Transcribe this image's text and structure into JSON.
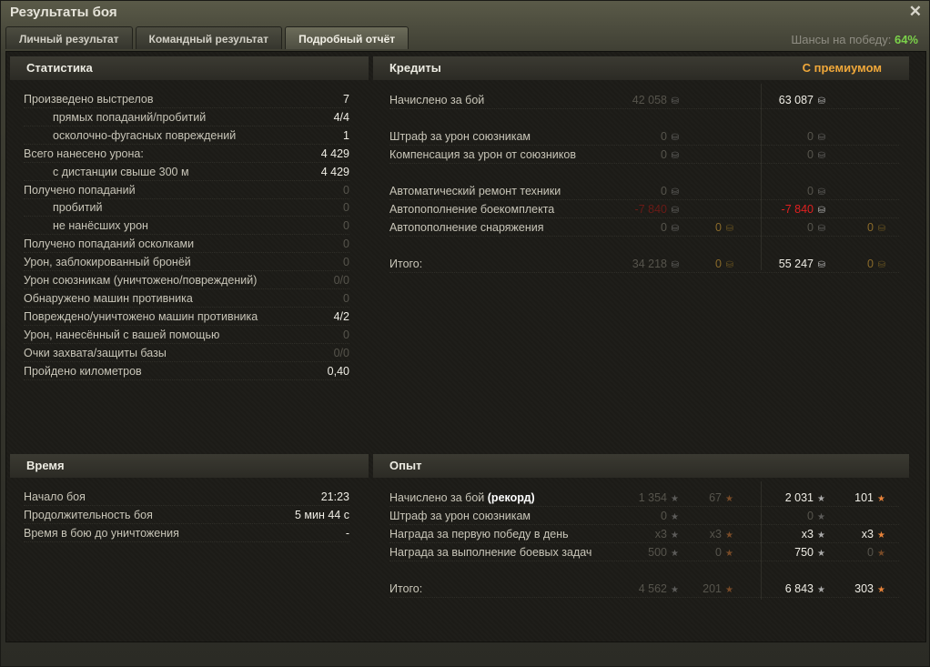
{
  "window": {
    "title": "Результаты боя",
    "close_icon": "close-icon"
  },
  "tabs": [
    {
      "label": "Личный результат",
      "active": false
    },
    {
      "label": "Командный результат",
      "active": false
    },
    {
      "label": "Подробный отчёт",
      "active": true
    }
  ],
  "win_chance": {
    "label": "Шансы на победу:",
    "value": "64%",
    "color": "#7bd24a"
  },
  "colors": {
    "premium": "#f0a83a",
    "negative": "#e02020"
  },
  "statistics": {
    "title": "Статистика",
    "rows": [
      {
        "label": "Произведено выстрелов",
        "value": "7",
        "indent": false,
        "dim": false
      },
      {
        "label": "прямых попаданий/пробитий",
        "value": "4/4",
        "indent": true,
        "dim": false
      },
      {
        "label": "осколочно-фугасных повреждений",
        "value": "1",
        "indent": true,
        "dim": false
      },
      {
        "label": "Всего нанесено урона:",
        "value": "4 429",
        "indent": false,
        "dim": false
      },
      {
        "label": "с дистанции свыше 300 м",
        "value": "4 429",
        "indent": true,
        "dim": false
      },
      {
        "label": "Получено попаданий",
        "value": "0",
        "indent": false,
        "dim": true
      },
      {
        "label": "пробитий",
        "value": "0",
        "indent": true,
        "dim": true
      },
      {
        "label": "не нанёсших урон",
        "value": "0",
        "indent": true,
        "dim": true
      },
      {
        "label": "Получено попаданий осколками",
        "value": "0",
        "indent": false,
        "dim": true
      },
      {
        "label": "Урон, заблокированный бронёй",
        "value": "0",
        "indent": false,
        "dim": true
      },
      {
        "label": "Урон союзникам (уничтожено/повреждений)",
        "value": "0/0",
        "indent": false,
        "dim": true
      },
      {
        "label": "Обнаружено машин противника",
        "value": "0",
        "indent": false,
        "dim": true
      },
      {
        "label": "Повреждено/уничтожено машин противника",
        "value": "4/2",
        "indent": false,
        "dim": false
      },
      {
        "label": "Урон, нанесённый с вашей помощью",
        "value": "0",
        "indent": false,
        "dim": true
      },
      {
        "label": "Очки захвата/защиты базы",
        "value": "0/0",
        "indent": false,
        "dim": true
      },
      {
        "label": "Пройдено километров",
        "value": "0,40",
        "indent": false,
        "dim": false
      }
    ]
  },
  "time": {
    "title": "Время",
    "rows": [
      {
        "label": "Начало боя",
        "value": "21:23"
      },
      {
        "label": "Продолжительность боя",
        "value": "5 мин 44 с"
      },
      {
        "label": "Время в бою до уничтожения",
        "value": "-"
      }
    ]
  },
  "credits": {
    "title": "Кредиты",
    "premium_label": "С премиумом",
    "groups": [
      [
        {
          "label": "Начислено за бой",
          "cells": [
            "42 058",
            null,
            "63 087",
            null
          ]
        }
      ],
      [
        {
          "label": "Штраф за урон союзникам",
          "cells": [
            "0",
            null,
            "0",
            null
          ]
        },
        {
          "label": "Компенсация за урон от союзников",
          "cells": [
            "0",
            null,
            "0",
            null
          ]
        }
      ],
      [
        {
          "label": "Автоматический ремонт техники",
          "cells": [
            "0",
            null,
            "0",
            null
          ]
        },
        {
          "label": "Автопополнение боекомплекта",
          "cells": [
            "-7 840",
            null,
            "-7 840",
            null
          ]
        },
        {
          "label": "Автопополнение снаряжения",
          "cells": [
            "0",
            "0",
            "0",
            "0"
          ]
        }
      ],
      [
        {
          "label": "Итого:",
          "cells": [
            "34 218",
            "0",
            "55 247",
            "0"
          ]
        }
      ]
    ]
  },
  "experience": {
    "title": "Опыт",
    "groups": [
      [
        {
          "label": "Начислено за бой",
          "label_extra": "(рекорд)",
          "cells": [
            "1 354",
            "67",
            "2 031",
            "101"
          ]
        },
        {
          "label": "Штраф за урон союзникам",
          "cells": [
            "0",
            null,
            "0",
            null
          ]
        },
        {
          "label": "Награда за первую победу в день",
          "cells": [
            "x3",
            "x3",
            "x3",
            "x3"
          ]
        },
        {
          "label": "Награда за выполнение боевых задач",
          "cells": [
            "500",
            "0",
            "750",
            "0"
          ]
        }
      ],
      [
        {
          "label": "Итого:",
          "cells": [
            "4 562",
            "201",
            "6 843",
            "303"
          ]
        }
      ]
    ]
  }
}
